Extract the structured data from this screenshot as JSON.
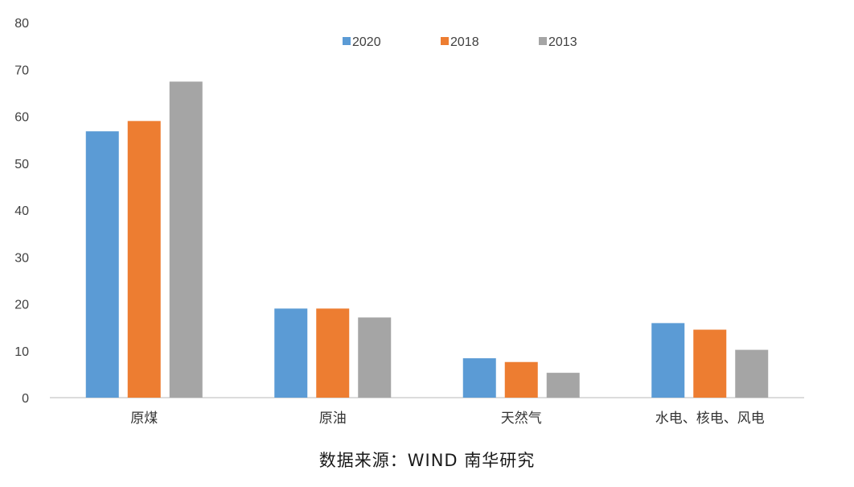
{
  "chart_data": {
    "type": "bar",
    "categories": [
      "原煤",
      "原油",
      "天然气",
      "水电、核电、风电"
    ],
    "series": [
      {
        "name": "2020",
        "color": "#5B9BD5",
        "values": [
          56.8,
          19.0,
          8.4,
          15.9
        ]
      },
      {
        "name": "2018",
        "color": "#ED7D31",
        "values": [
          59.0,
          19.0,
          7.6,
          14.5
        ]
      },
      {
        "name": "2013",
        "color": "#A5A5A5",
        "values": [
          67.4,
          17.1,
          5.3,
          10.2
        ]
      }
    ],
    "ylim": [
      0,
      80
    ],
    "yticks": [
      0,
      10,
      20,
      30,
      40,
      50,
      60,
      70,
      80
    ],
    "grid": false,
    "legend_position": "top"
  },
  "source_text": "数据来源：WIND 南华研究"
}
